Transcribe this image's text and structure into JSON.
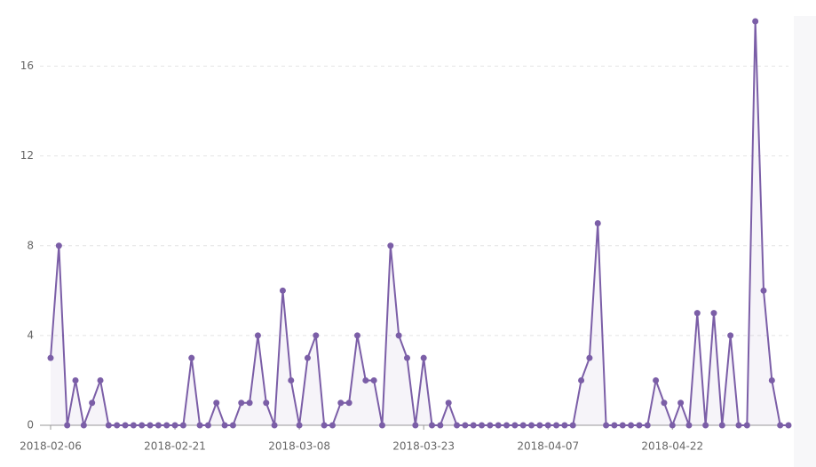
{
  "chart_data": {
    "type": "line",
    "x": [
      "2018-02-06",
      "2018-02-07",
      "2018-02-08",
      "2018-02-09",
      "2018-02-10",
      "2018-02-11",
      "2018-02-12",
      "2018-02-13",
      "2018-02-14",
      "2018-02-15",
      "2018-02-16",
      "2018-02-17",
      "2018-02-18",
      "2018-02-19",
      "2018-02-20",
      "2018-02-21",
      "2018-02-22",
      "2018-02-23",
      "2018-02-24",
      "2018-02-25",
      "2018-02-26",
      "2018-02-27",
      "2018-02-28",
      "2018-03-01",
      "2018-03-02",
      "2018-03-03",
      "2018-03-04",
      "2018-03-05",
      "2018-03-06",
      "2018-03-07",
      "2018-03-08",
      "2018-03-09",
      "2018-03-10",
      "2018-03-11",
      "2018-03-12",
      "2018-03-13",
      "2018-03-14",
      "2018-03-15",
      "2018-03-16",
      "2018-03-17",
      "2018-03-18",
      "2018-03-19",
      "2018-03-20",
      "2018-03-21",
      "2018-03-22",
      "2018-03-23",
      "2018-03-24",
      "2018-03-25",
      "2018-03-26",
      "2018-03-27",
      "2018-03-28",
      "2018-03-29",
      "2018-03-30",
      "2018-03-31",
      "2018-04-01",
      "2018-04-02",
      "2018-04-03",
      "2018-04-04",
      "2018-04-05",
      "2018-04-06",
      "2018-04-07",
      "2018-04-08",
      "2018-04-09",
      "2018-04-10",
      "2018-04-11",
      "2018-04-12",
      "2018-04-13",
      "2018-04-14",
      "2018-04-15",
      "2018-04-16",
      "2018-04-17",
      "2018-04-18",
      "2018-04-19",
      "2018-04-20",
      "2018-04-21",
      "2018-04-22",
      "2018-04-23",
      "2018-04-24",
      "2018-04-25",
      "2018-04-26",
      "2018-04-27",
      "2018-04-28",
      "2018-04-29",
      "2018-04-30",
      "2018-05-01",
      "2018-05-02",
      "2018-05-03",
      "2018-05-04",
      "2018-05-05",
      "2018-05-06"
    ],
    "series": [
      {
        "color": "#7b5ea7",
        "values": [
          3,
          8,
          0,
          2,
          0,
          1,
          2,
          0,
          0,
          0,
          0,
          0,
          0,
          0,
          0,
          0,
          0,
          3,
          0,
          0,
          1,
          0,
          0,
          1,
          1,
          4,
          1,
          0,
          6,
          2,
          0,
          3,
          4,
          0,
          0,
          1,
          1,
          4,
          2,
          2,
          0,
          8,
          4,
          3,
          0,
          3,
          0,
          0,
          1,
          0,
          0,
          0,
          0,
          0,
          0,
          0,
          0,
          0,
          0,
          0,
          0,
          0,
          0,
          0,
          2,
          3,
          9,
          0,
          0,
          0,
          0,
          0,
          0,
          2,
          1,
          0,
          1,
          0,
          5,
          0,
          5,
          0,
          4,
          0,
          0,
          18,
          6,
          2,
          0,
          0
        ]
      }
    ],
    "xticks": [
      "2018-02-06",
      "2018-02-21",
      "2018-03-08",
      "2018-03-23",
      "2018-04-07",
      "2018-04-22"
    ],
    "ylim": [
      0,
      18
    ],
    "yticks": [
      0,
      4,
      8,
      12,
      16
    ],
    "grid": true
  }
}
